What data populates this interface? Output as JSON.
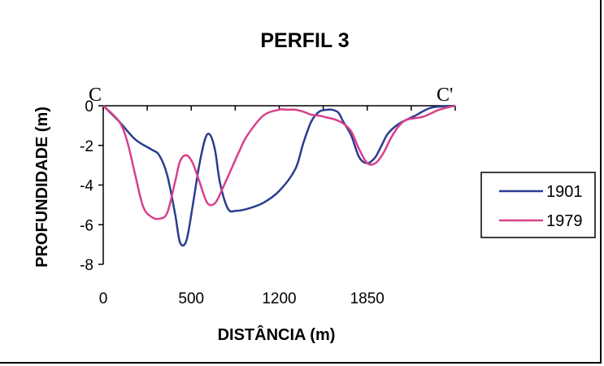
{
  "chart_data": {
    "type": "line",
    "title": "PERFIL 3",
    "xlabel": "DISTÂNCIA (m)",
    "ylabel": "PROFUNDIDADE (m)",
    "x_tick_labels": [
      "0",
      "500",
      "1200",
      "1850"
    ],
    "y_tick_labels": [
      "0",
      "-2",
      "-4",
      "-6",
      "-8"
    ],
    "ylim": [
      -8,
      0
    ],
    "xlim": [
      0,
      2200
    ],
    "start_label": "C",
    "end_label": "C'",
    "grid": false,
    "legend": "right",
    "series": [
      {
        "name": "1901",
        "color": "#2b3d8f",
        "x": [
          0,
          100,
          200,
          300,
          350,
          400,
          450,
          480,
          520,
          560,
          600,
          640,
          670,
          700,
          730,
          780,
          830,
          900,
          1000,
          1100,
          1200,
          1250,
          1300,
          1350,
          1400,
          1430,
          1470,
          1500,
          1550,
          1600,
          1650,
          1700,
          1740,
          1780,
          1850,
          1950,
          2050,
          2200
        ],
        "y": [
          0,
          -0.8,
          -1.7,
          -2.2,
          -2.5,
          -3.5,
          -5.5,
          -6.9,
          -6.8,
          -5,
          -3,
          -1.6,
          -1.5,
          -2.3,
          -3.9,
          -5.2,
          -5.3,
          -5.2,
          -4.9,
          -4.3,
          -3.2,
          -1.9,
          -0.8,
          -0.3,
          -0.2,
          -0.2,
          -0.35,
          -0.8,
          -1.5,
          -2.6,
          -2.9,
          -2.6,
          -2,
          -1.4,
          -0.9,
          -0.5,
          -0.1,
          0
        ]
      },
      {
        "name": "1979",
        "color": "#d8408c",
        "x": [
          0,
          100,
          150,
          200,
          250,
          300,
          350,
          400,
          450,
          480,
          520,
          560,
          600,
          650,
          700,
          750,
          800,
          850,
          900,
          1000,
          1100,
          1150,
          1200,
          1250,
          1300,
          1350,
          1400,
          1450,
          1500,
          1550,
          1600,
          1650,
          1700,
          1750,
          1800,
          1850,
          1900,
          2000,
          2100,
          2200
        ],
        "y": [
          0,
          -0.8,
          -1.8,
          -3.5,
          -5.1,
          -5.6,
          -5.7,
          -5.4,
          -3.8,
          -2.8,
          -2.5,
          -2.9,
          -3.8,
          -4.9,
          -4.9,
          -4.1,
          -3.2,
          -2.3,
          -1.5,
          -0.5,
          -0.2,
          -0.2,
          -0.2,
          -0.3,
          -0.45,
          -0.5,
          -0.6,
          -0.7,
          -0.9,
          -1.3,
          -2.2,
          -2.9,
          -2.9,
          -2.4,
          -1.6,
          -1,
          -0.7,
          -0.55,
          -0.2,
          0
        ]
      }
    ]
  }
}
